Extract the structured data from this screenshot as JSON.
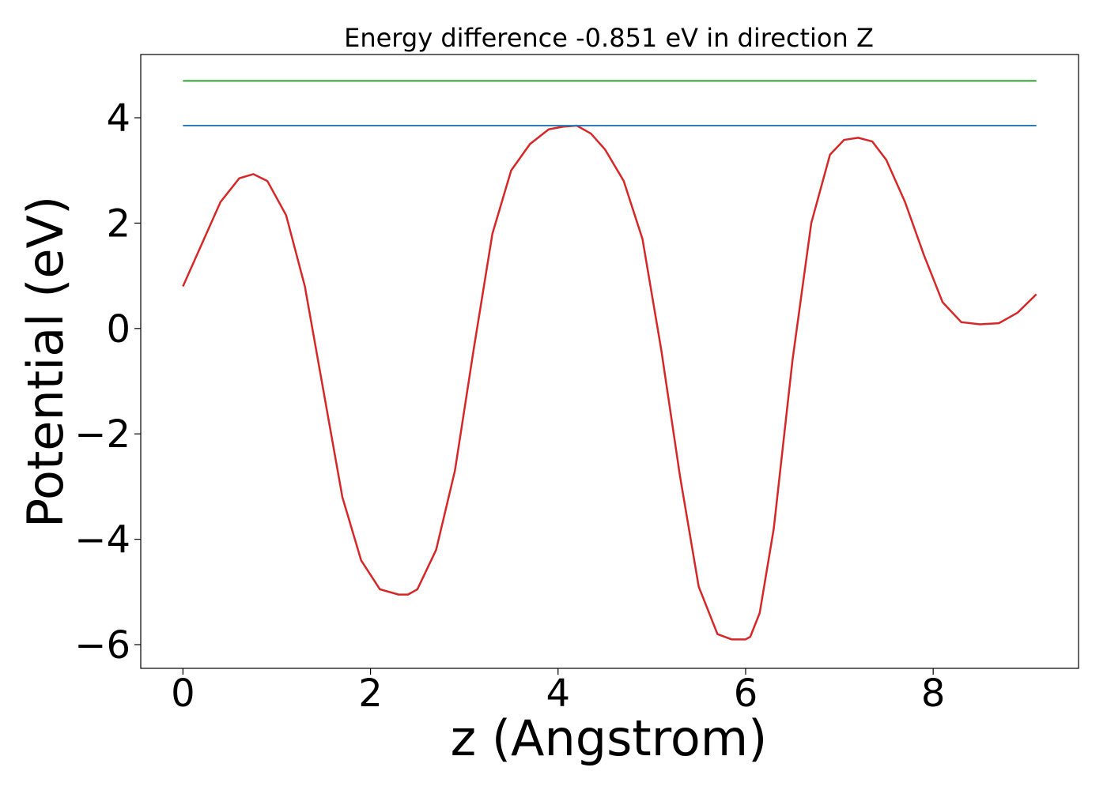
{
  "chart_data": {
    "type": "line",
    "title": "Energy difference -0.851 eV in direction Z",
    "xlabel": "z (Angstrom)",
    "ylabel": "Potential (eV)",
    "xlim": [
      -0.45,
      9.55
    ],
    "ylim": [
      -6.45,
      5.2
    ],
    "xticks": [
      0,
      2,
      4,
      6,
      8
    ],
    "xtick_labels": [
      "0",
      "2",
      "4",
      "6",
      "8"
    ],
    "yticks": [
      -6,
      -4,
      -2,
      0,
      2,
      4
    ],
    "ytick_labels": [
      "−6",
      "−4",
      "−2",
      "0",
      "2",
      "4"
    ],
    "grid": false,
    "legend": "none",
    "series": [
      {
        "color": "#d62728",
        "x": [
          0.0,
          0.2,
          0.4,
          0.6,
          0.75,
          0.9,
          1.1,
          1.3,
          1.5,
          1.7,
          1.9,
          2.1,
          2.3,
          2.4,
          2.5,
          2.7,
          2.9,
          3.1,
          3.3,
          3.5,
          3.7,
          3.9,
          4.05,
          4.2,
          4.35,
          4.5,
          4.7,
          4.9,
          5.1,
          5.3,
          5.5,
          5.7,
          5.85,
          6.0,
          6.05,
          6.15,
          6.3,
          6.5,
          6.7,
          6.9,
          7.05,
          7.2,
          7.35,
          7.5,
          7.7,
          7.9,
          8.1,
          8.3,
          8.5,
          8.7,
          8.9,
          9.1
        ],
        "y": [
          0.8,
          1.6,
          2.4,
          2.85,
          2.93,
          2.8,
          2.15,
          0.8,
          -1.2,
          -3.2,
          -4.4,
          -4.95,
          -5.05,
          -5.05,
          -4.95,
          -4.2,
          -2.7,
          -0.4,
          1.8,
          3.0,
          3.5,
          3.78,
          3.83,
          3.85,
          3.7,
          3.4,
          2.8,
          1.7,
          -0.4,
          -2.8,
          -4.9,
          -5.8,
          -5.9,
          -5.9,
          -5.85,
          -5.4,
          -3.8,
          -0.6,
          2.0,
          3.3,
          3.58,
          3.62,
          3.55,
          3.2,
          2.4,
          1.4,
          0.5,
          0.12,
          0.08,
          0.1,
          0.3,
          0.65
        ]
      },
      {
        "color": "#2b7bb9",
        "x": [
          0.0,
          9.1
        ],
        "y": [
          3.85,
          3.85
        ]
      },
      {
        "color": "#2ca02c",
        "x": [
          0.0,
          9.1
        ],
        "y": [
          4.7,
          4.7
        ]
      }
    ]
  }
}
